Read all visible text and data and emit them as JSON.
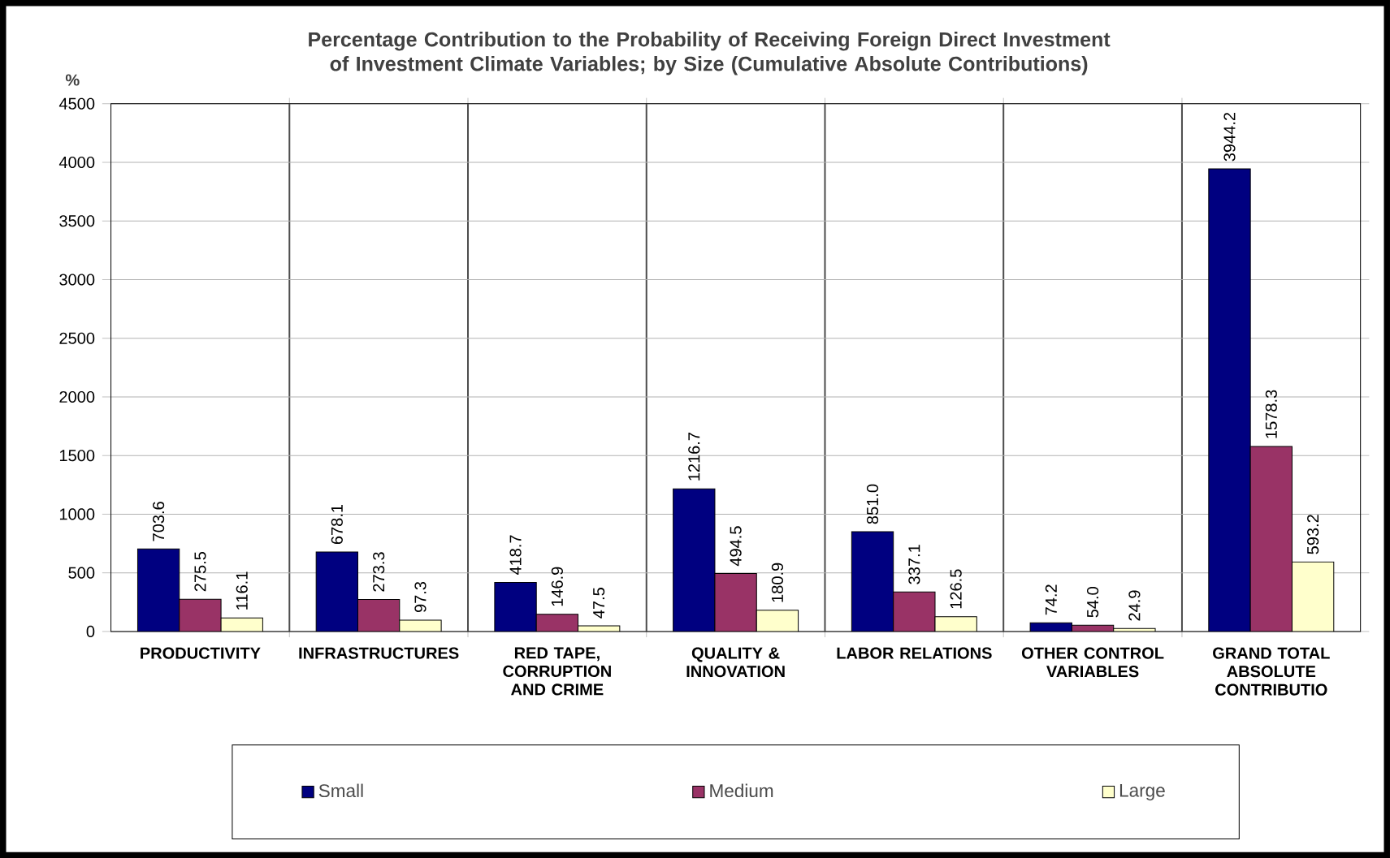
{
  "chart_data": {
    "type": "bar",
    "title": "Percentage Contribution to the Probability of Receiving Foreign Direct Investment of Investment Climate Variables; by Size (Cumulative Absolute Contributions)",
    "ylabel": "%",
    "categories": [
      "PRODUCTIVITY",
      "INFRASTRUCTURES",
      "RED TAPE, CORRUPTION AND CRIME",
      "QUALITY & INNOVATION",
      "LABOR RELATIONS",
      "OTHER CONTROL VARIABLES",
      "GRAND TOTAL ABSOLUTE CONTRIBUTIO"
    ],
    "series": [
      {
        "name": "Small",
        "color": "#000080",
        "values": [
          703.6,
          678.1,
          418.7,
          1216.7,
          851.0,
          74.2,
          3944.2
        ],
        "value_labels": [
          "703.6",
          "678.1",
          "418.7",
          "1216.7",
          "851.0",
          "74.2",
          "3944.2"
        ]
      },
      {
        "name": "Medium",
        "color": "#993366",
        "values": [
          275.5,
          273.3,
          146.9,
          494.5,
          337.1,
          54.0,
          1578.3
        ],
        "value_labels": [
          "275.5",
          "273.3",
          "146.9",
          "494.5",
          "337.1",
          "54.0",
          "1578.3"
        ]
      },
      {
        "name": "Large",
        "color": "#ffffcc",
        "values": [
          116.1,
          97.3,
          47.5,
          180.9,
          126.5,
          24.9,
          593.2
        ],
        "value_labels": [
          "116.1",
          "97.3",
          "47.5",
          "180.9",
          "126.5",
          "24.9",
          "593.2"
        ]
      }
    ],
    "ylim": [
      0,
      4500
    ],
    "yticks": [
      0,
      500,
      1000,
      1500,
      2000,
      2500,
      3000,
      3500,
      4000,
      4500
    ],
    "grid": true,
    "legend": "bottom"
  }
}
